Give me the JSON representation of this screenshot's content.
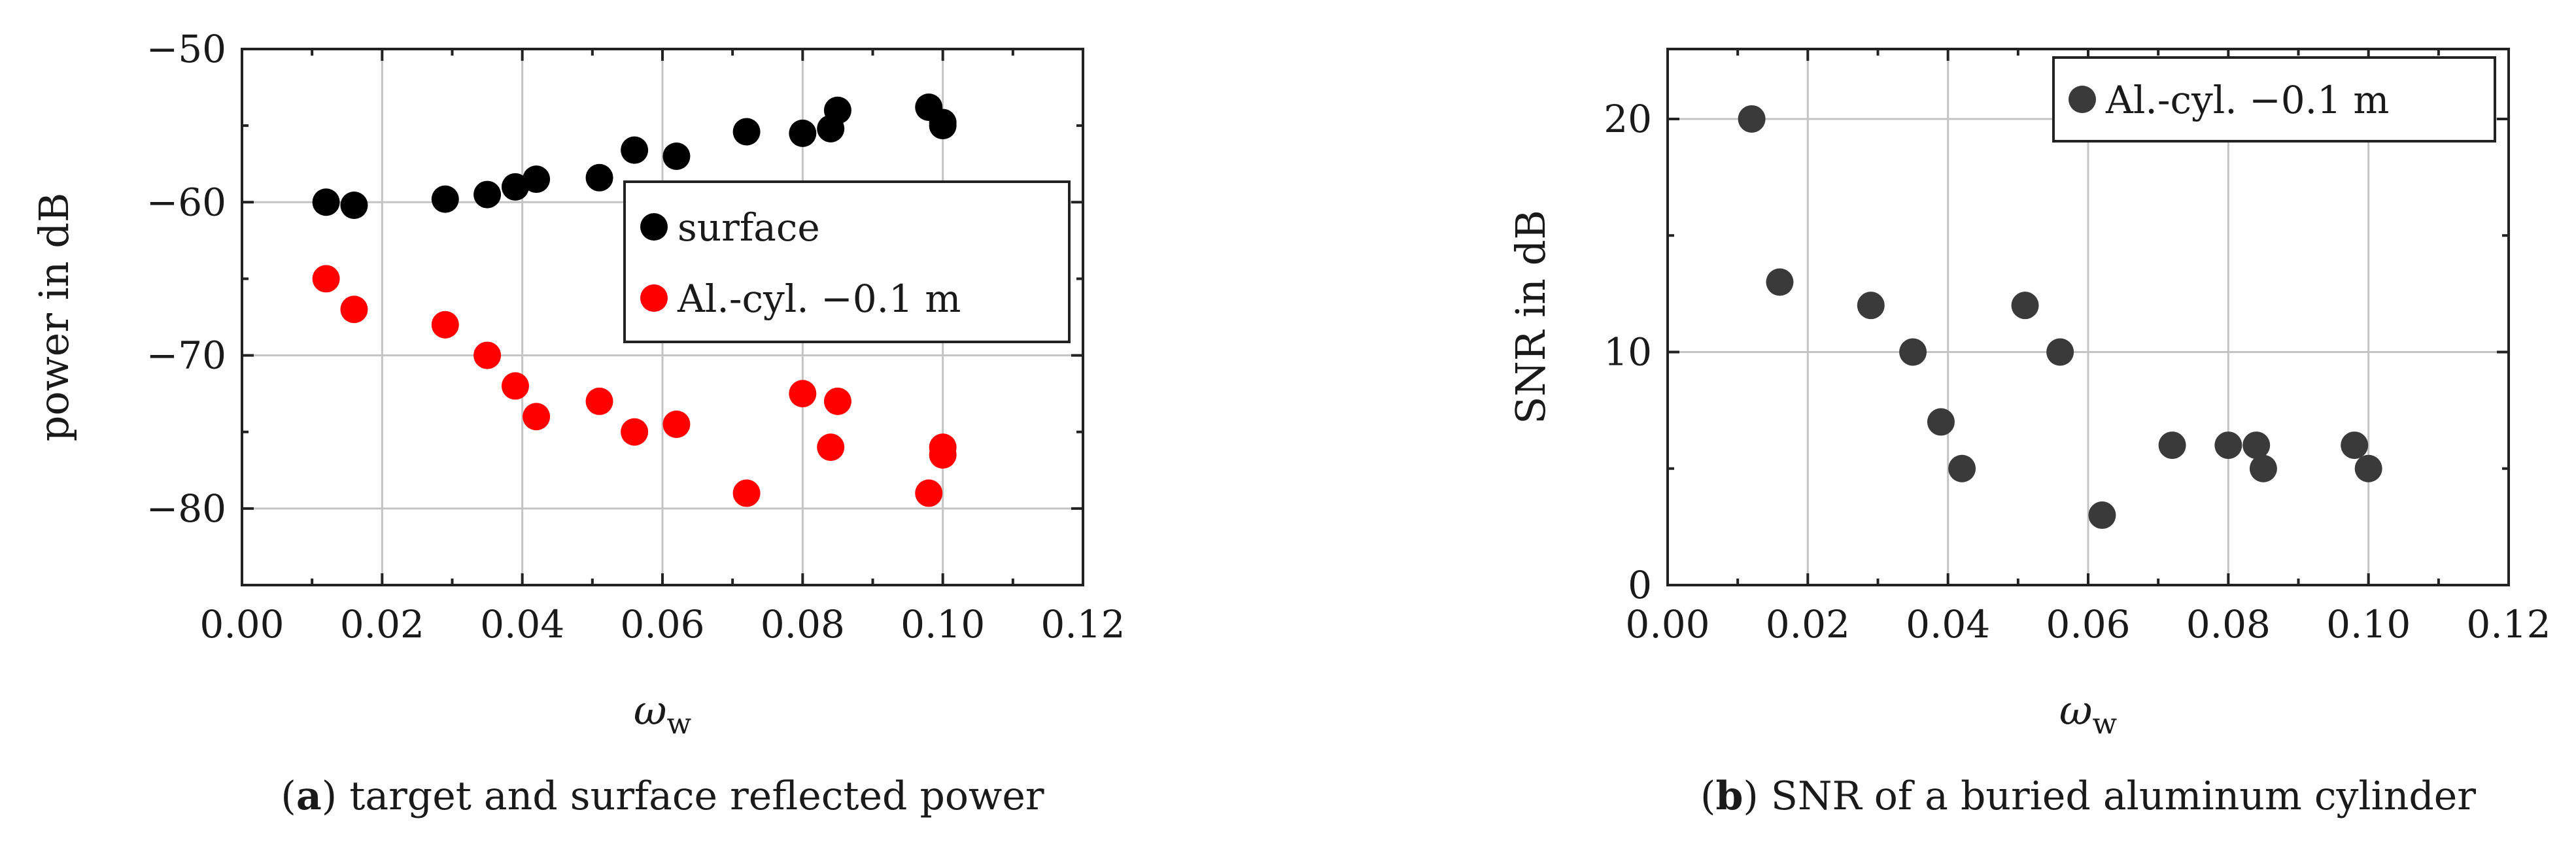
{
  "chart_data": [
    {
      "type": "scatter",
      "xlabel": "ω",
      "xlabel_sub": "w",
      "ylabel": "power in dB",
      "xlim": [
        0.0,
        0.12
      ],
      "ylim": [
        -85,
        -50
      ],
      "xticks": [
        "0.00",
        "0.02",
        "0.04",
        "0.06",
        "0.08",
        "0.10",
        "0.12"
      ],
      "yticks": [
        "−50",
        "−60",
        "−70",
        "−80"
      ],
      "ytick_values": [
        -50,
        -60,
        -70,
        -80
      ],
      "grid": true,
      "legend_position": "center-right",
      "series": [
        {
          "name": "surface",
          "color": "#000000",
          "x": [
            0.012,
            0.016,
            0.029,
            0.035,
            0.039,
            0.042,
            0.051,
            0.056,
            0.062,
            0.072,
            0.08,
            0.084,
            0.085,
            0.098,
            0.1,
            0.1
          ],
          "y": [
            -60.0,
            -60.2,
            -59.8,
            -59.5,
            -59.0,
            -58.5,
            -58.4,
            -56.6,
            -57.0,
            -55.4,
            -55.5,
            -55.2,
            -54.0,
            -53.8,
            -55.0,
            -54.8
          ]
        },
        {
          "name": "Al.-cyl. −0.1 m",
          "color": "#ff0000",
          "x": [
            0.012,
            0.016,
            0.029,
            0.035,
            0.039,
            0.042,
            0.051,
            0.056,
            0.062,
            0.072,
            0.08,
            0.084,
            0.085,
            0.098,
            0.1,
            0.1
          ],
          "y": [
            -65.0,
            -67.0,
            -68.0,
            -70.0,
            -72.0,
            -74.0,
            -73.0,
            -75.0,
            -74.5,
            -79.0,
            -72.5,
            -76.0,
            -73.0,
            -79.0,
            -76.0,
            -76.5
          ]
        }
      ],
      "caption_letter": "a",
      "caption_text": " target and surface reflected power"
    },
    {
      "type": "scatter",
      "xlabel": "ω",
      "xlabel_sub": "w",
      "ylabel": "SNR in dB",
      "xlim": [
        0.0,
        0.12
      ],
      "ylim": [
        0,
        23
      ],
      "xticks": [
        "0.00",
        "0.02",
        "0.04",
        "0.06",
        "0.08",
        "0.10",
        "0.12"
      ],
      "yticks": [
        "0",
        "10",
        "20"
      ],
      "ytick_values": [
        0,
        10,
        20
      ],
      "grid": true,
      "legend_position": "top-right",
      "series": [
        {
          "name": "Al.-cyl. −0.1 m",
          "color": "#3a3a3a",
          "x": [
            0.012,
            0.016,
            0.029,
            0.035,
            0.039,
            0.042,
            0.051,
            0.056,
            0.062,
            0.072,
            0.08,
            0.084,
            0.085,
            0.098,
            0.1
          ],
          "y": [
            20,
            13,
            12,
            10,
            7,
            5,
            12,
            10,
            3,
            6,
            6,
            6,
            5,
            6,
            5
          ]
        }
      ],
      "caption_letter": "b",
      "caption_text": " SNR of a buried aluminum cylinder"
    }
  ]
}
